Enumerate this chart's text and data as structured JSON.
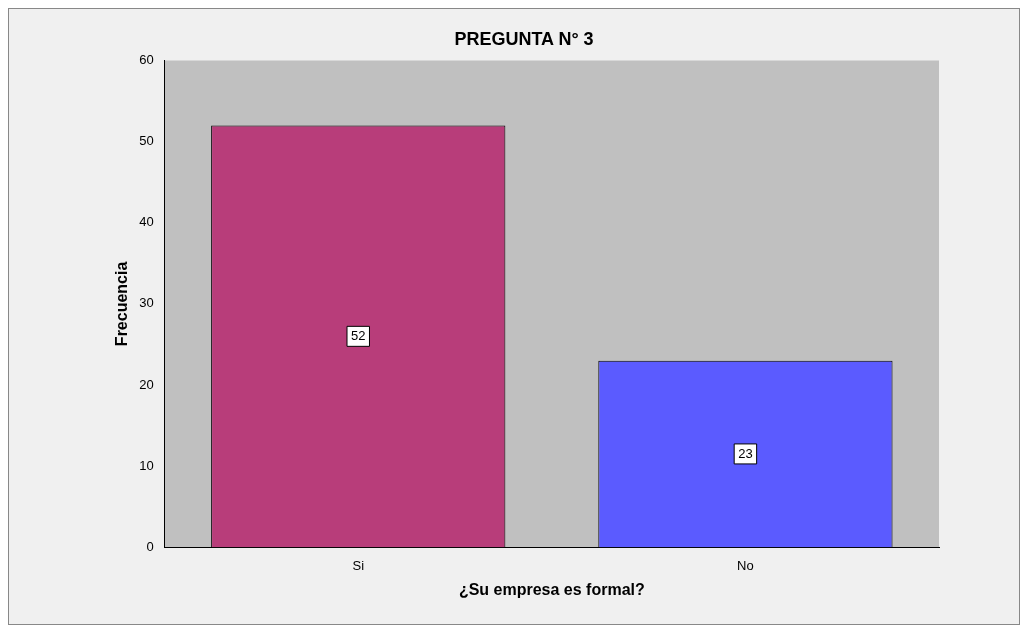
{
  "chart_data": {
    "type": "bar",
    "title": "PREGUNTA N° 3",
    "xlabel": "¿Su empresa es formal?",
    "ylabel": "Frecuencia",
    "categories": [
      "Si",
      "No"
    ],
    "values": [
      52,
      23
    ],
    "colors": [
      "#b83d7a",
      "#5b5bff"
    ],
    "ylim": [
      0,
      60
    ],
    "yticks": [
      0,
      10,
      20,
      30,
      40,
      50,
      60
    ],
    "grid": false,
    "legend": false,
    "data_labels": true
  }
}
